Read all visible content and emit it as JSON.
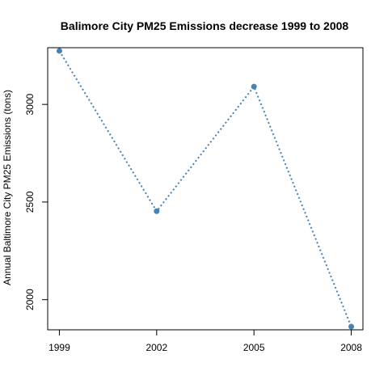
{
  "chart_data": {
    "type": "line",
    "title": "Balimore City PM25 Emissions decrease 1999 to 2008",
    "xlabel": "",
    "ylabel": "Annual Baltimore City PM25 Emissions (tons)",
    "x": [
      1999,
      2002,
      2005,
      2008
    ],
    "x_tick_labels": [
      "1999",
      "2002",
      "2005",
      "2008"
    ],
    "y_ticks": [
      2000,
      2500,
      3000
    ],
    "y_tick_labels": [
      "2000",
      "2500",
      "3000"
    ],
    "series": [
      {
        "values": [
          3274,
          2453,
          3091,
          1862
        ]
      }
    ],
    "xlim": [
      1998.64,
      2008.36
    ],
    "ylim": [
      1845.6,
      3290.4
    ],
    "line_style": "dotted",
    "marker": "circle",
    "color": "#4682b4",
    "grid": false,
    "legend": "none"
  }
}
